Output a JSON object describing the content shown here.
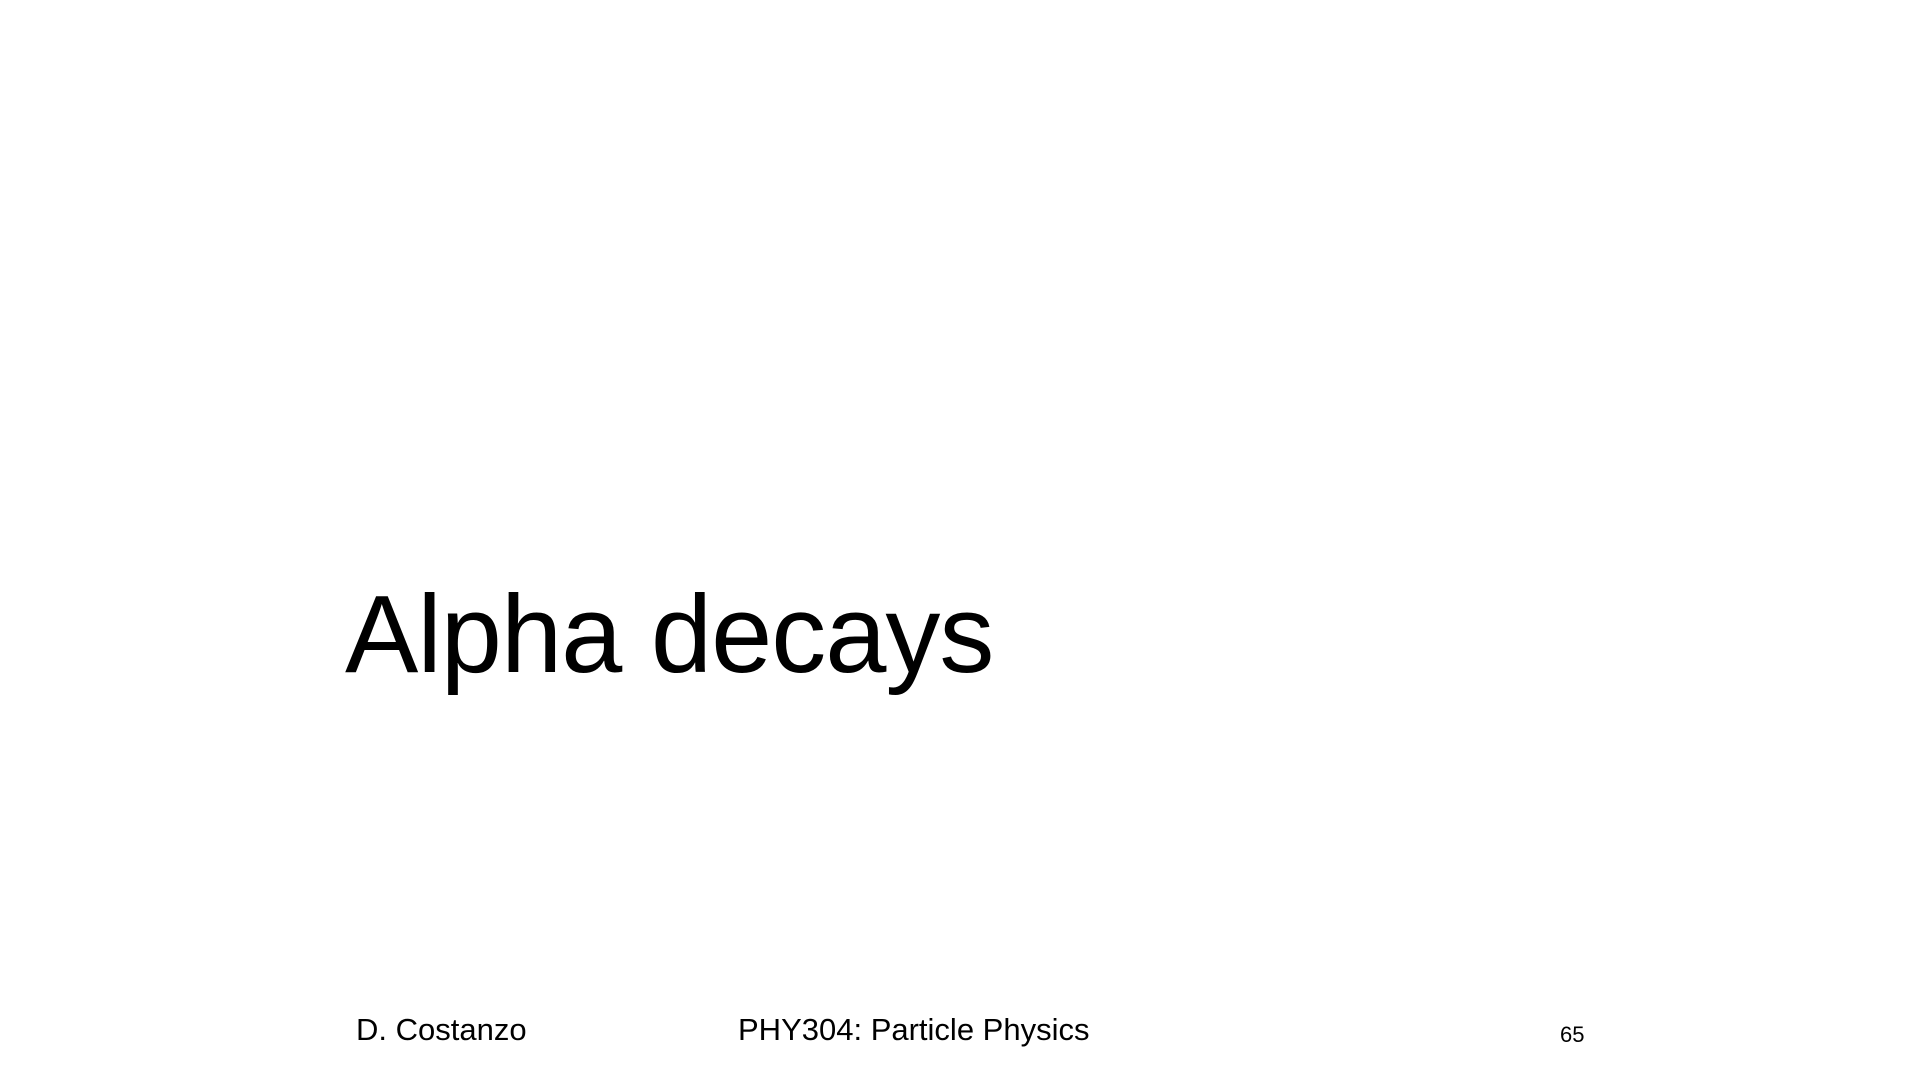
{
  "slide": {
    "title": "Alpha decays",
    "footer": {
      "author": "D. Costanzo",
      "course": "PHY304: Particle Physics",
      "page_number": "65"
    }
  }
}
